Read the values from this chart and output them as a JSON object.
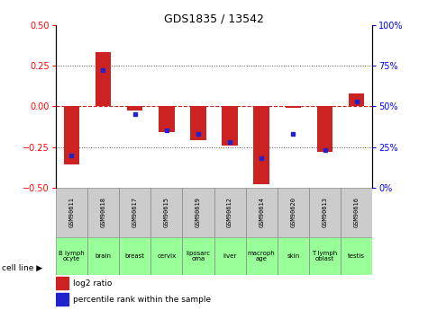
{
  "title": "GDS1835 / 13542",
  "samples": [
    "GSM90611",
    "GSM90618",
    "GSM90617",
    "GSM90615",
    "GSM90619",
    "GSM90612",
    "GSM90614",
    "GSM90620",
    "GSM90613",
    "GSM90616"
  ],
  "cell_lines": [
    "B lymph\nocyte",
    "brain",
    "breast",
    "cervix",
    "liposarc\noma",
    "liver",
    "macroph\nage",
    "skin",
    "T lymph\noblast",
    "testis"
  ],
  "log2_ratio": [
    -0.36,
    0.33,
    -0.025,
    -0.16,
    -0.21,
    -0.24,
    -0.48,
    -0.01,
    -0.28,
    0.08
  ],
  "percentile_rank": [
    20,
    72,
    45,
    35,
    33,
    28,
    18,
    33,
    23,
    53
  ],
  "bar_color": "#cc2222",
  "dot_color": "#2222cc",
  "ylim_left": [
    -0.5,
    0.5
  ],
  "ylim_right": [
    0,
    100
  ],
  "yticks_left": [
    -0.5,
    -0.25,
    0,
    0.25,
    0.5
  ],
  "yticks_right": [
    0,
    25,
    50,
    75,
    100
  ],
  "grid_lines": [
    -0.25,
    0,
    0.25
  ],
  "zero_line_color": "#cc2222",
  "dotted_color": "#555555",
  "background_header": "#cccccc",
  "background_cells": "#99ff99",
  "legend_log2": "log2 ratio",
  "legend_pct": "percentile rank within the sample",
  "cell_line_label": "cell line"
}
